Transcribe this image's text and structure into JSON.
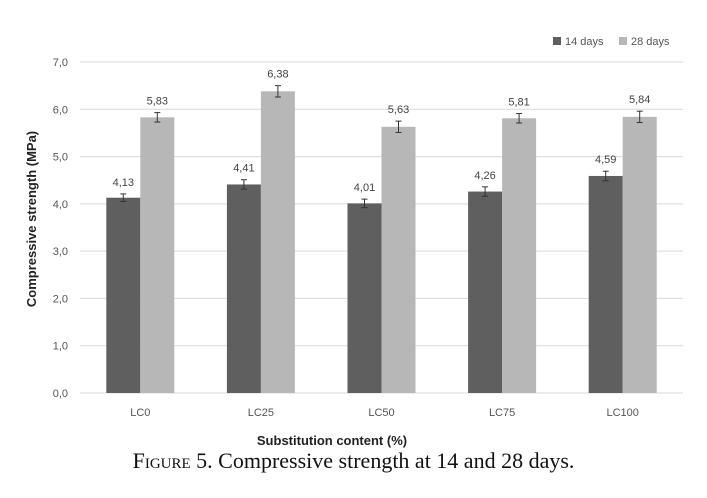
{
  "chart_data": {
    "type": "bar",
    "categories": [
      "LC0",
      "LC25",
      "LC50",
      "LC75",
      "LC100"
    ],
    "series": [
      {
        "name": "14 days",
        "color": "#5f5f5f",
        "values": [
          4.13,
          4.41,
          4.01,
          4.26,
          4.59
        ],
        "value_labels": [
          "4,13",
          "4,41",
          "4,01",
          "4,26",
          "4,59"
        ],
        "error": [
          0.08,
          0.1,
          0.09,
          0.1,
          0.1
        ]
      },
      {
        "name": "28 days",
        "color": "#b7b7b7",
        "values": [
          5.83,
          6.38,
          5.63,
          5.81,
          5.84
        ],
        "value_labels": [
          "5,83",
          "6,38",
          "5,63",
          "5,81",
          "5,84"
        ],
        "error": [
          0.1,
          0.12,
          0.12,
          0.1,
          0.12
        ]
      }
    ],
    "ylim": [
      0,
      7
    ],
    "yticks": [
      0,
      1,
      2,
      3,
      4,
      5,
      6,
      7
    ],
    "ytick_labels": [
      "0,0",
      "1,0",
      "2,0",
      "3,0",
      "4,0",
      "5,0",
      "6,0",
      "7,0"
    ],
    "xlabel": "Substitution  content (%)",
    "ylabel": "Compressive strength (MPa)",
    "grid": true,
    "legend_position": "top-right"
  },
  "caption": {
    "label": "Figure",
    "number": "5.",
    "text": "Compressive strength at 14 and 28 days."
  }
}
